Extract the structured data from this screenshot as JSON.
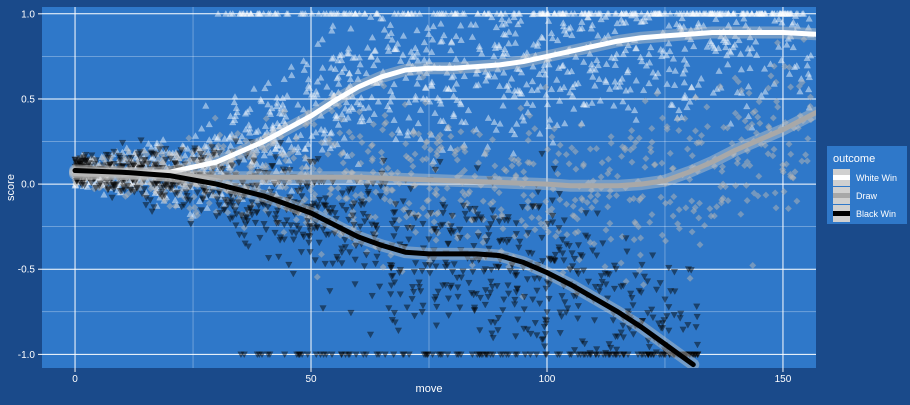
{
  "chart_data": {
    "type": "scatter",
    "title": "",
    "xlabel": "move",
    "ylabel": "score",
    "xlim": [
      -7,
      157
    ],
    "ylim": [
      -1.08,
      1.04
    ],
    "x_ticks": [
      0,
      50,
      100,
      150
    ],
    "x_tick_labels": [
      "0",
      "50",
      "100",
      "150"
    ],
    "y_ticks": [
      -1.0,
      -0.5,
      0.0,
      0.5,
      1.0
    ],
    "y_tick_labels": [
      "-1.0",
      "-0.5",
      "0.0",
      "0.5",
      "1.0"
    ],
    "grid": true,
    "legend": {
      "title": "outcome",
      "placement": "right",
      "entries": [
        "White Win",
        "Draw",
        "Black Win"
      ]
    },
    "colors": {
      "background": "#1a4a8a",
      "panel": "#2f78c9",
      "grid": "#ffffff",
      "white_win": "#ffffff",
      "draw": "#a8a8a8",
      "black_win": "#000000"
    },
    "series": [
      {
        "name": "White Win",
        "marker": "triangle-up",
        "smooth_x": [
          0,
          10,
          20,
          30,
          40,
          50,
          55,
          60,
          65,
          70,
          75,
          80,
          85,
          90,
          95,
          100,
          105,
          110,
          115,
          120,
          125,
          130,
          135,
          140,
          145,
          150,
          157
        ],
        "smooth_y": [
          0.07,
          0.06,
          0.07,
          0.13,
          0.25,
          0.4,
          0.49,
          0.57,
          0.63,
          0.67,
          0.68,
          0.68,
          0.69,
          0.7,
          0.72,
          0.75,
          0.78,
          0.81,
          0.84,
          0.86,
          0.87,
          0.88,
          0.89,
          0.89,
          0.89,
          0.89,
          0.88
        ]
      },
      {
        "name": "Draw",
        "marker": "diamond",
        "smooth_x": [
          0,
          10,
          20,
          30,
          40,
          50,
          60,
          70,
          80,
          90,
          100,
          105,
          110,
          115,
          120,
          125,
          130,
          135,
          140,
          145,
          150,
          157
        ],
        "smooth_y": [
          0.06,
          0.06,
          0.05,
          0.04,
          0.04,
          0.04,
          0.04,
          0.03,
          0.02,
          0.01,
          0.0,
          -0.01,
          -0.01,
          -0.01,
          0.0,
          0.02,
          0.07,
          0.13,
          0.2,
          0.26,
          0.32,
          0.42
        ]
      },
      {
        "name": "Black Win",
        "marker": "triangle-down",
        "smooth_x": [
          0,
          10,
          20,
          30,
          40,
          50,
          55,
          60,
          65,
          70,
          75,
          80,
          85,
          90,
          95,
          100,
          105,
          110,
          115,
          120,
          125,
          128,
          131
        ],
        "smooth_y": [
          0.08,
          0.07,
          0.05,
          0.0,
          -0.07,
          -0.17,
          -0.24,
          -0.31,
          -0.36,
          -0.4,
          -0.41,
          -0.41,
          -0.41,
          -0.42,
          -0.46,
          -0.52,
          -0.59,
          -0.67,
          -0.75,
          -0.84,
          -0.94,
          -1.0,
          -1.06
        ]
      }
    ]
  }
}
